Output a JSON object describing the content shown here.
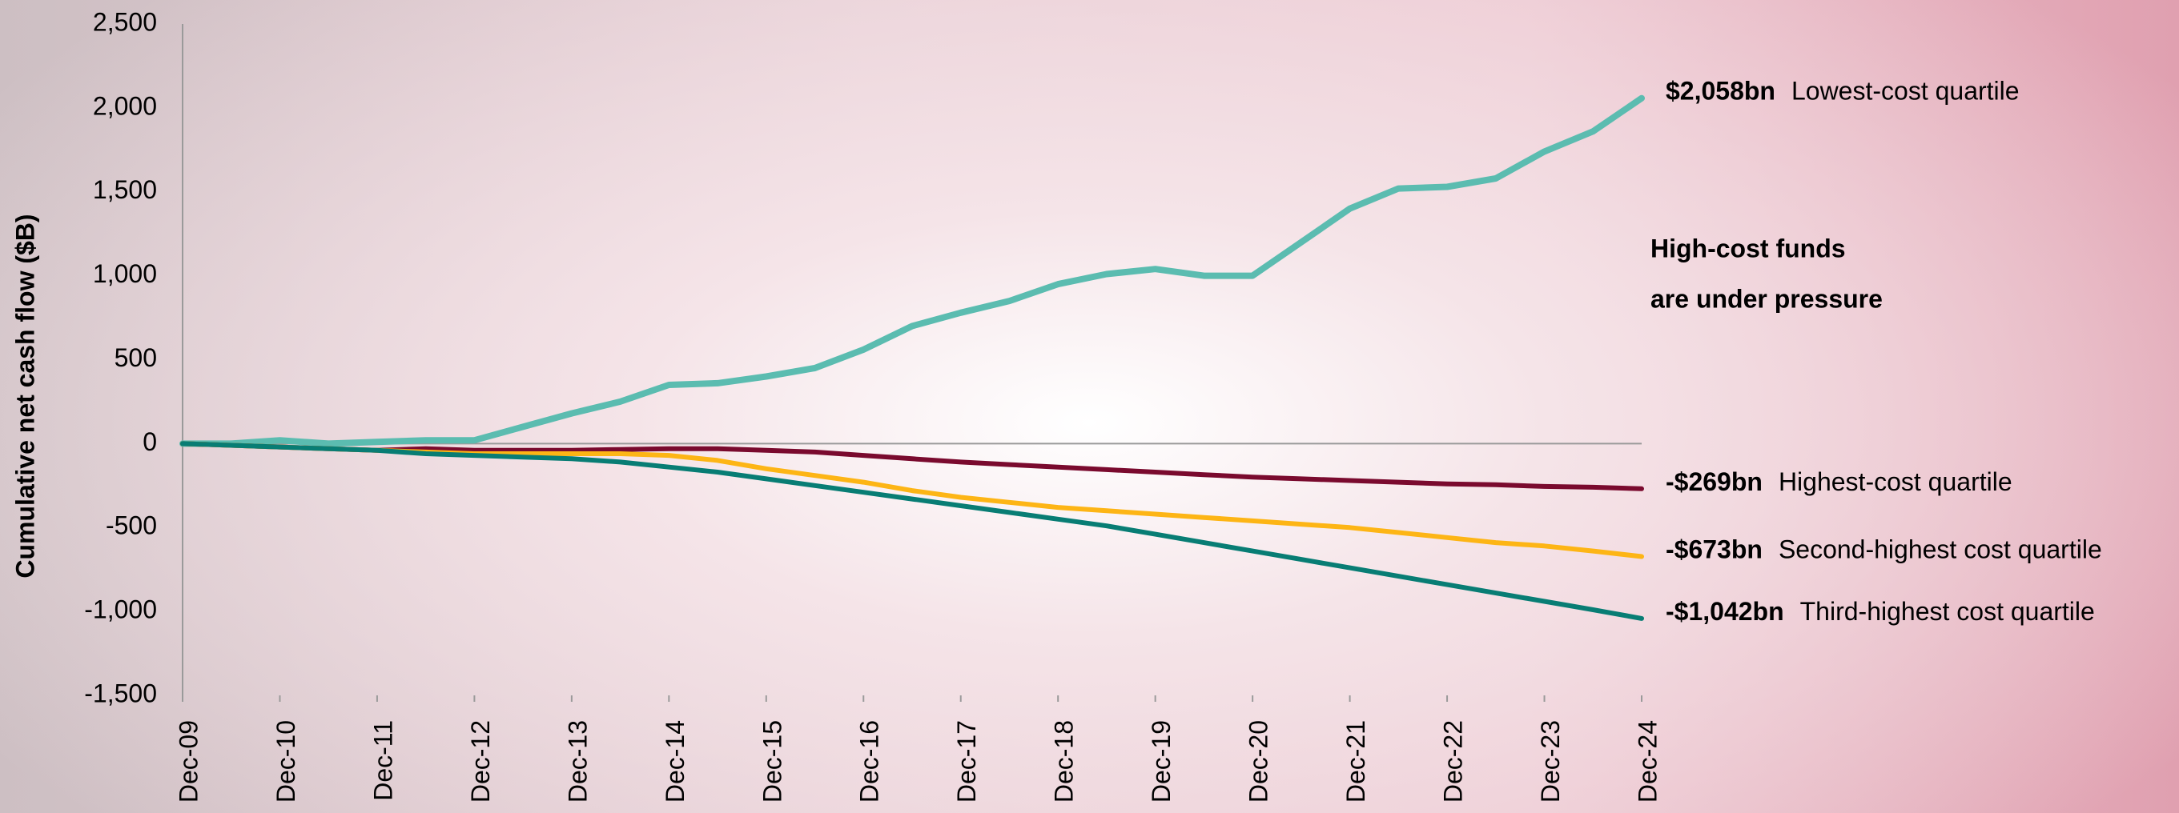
{
  "chart_data": {
    "type": "line",
    "y_axis_label": "Cumulative net cash flow ($B)",
    "annotation": [
      "High-cost funds",
      "are under pressure"
    ],
    "annotation_color": "#e8112d",
    "categories": [
      "Dec-09",
      null,
      "Dec-10",
      null,
      "Dec-11",
      null,
      "Dec-12",
      null,
      "Dec-13",
      null,
      "Dec-14",
      null,
      "Dec-15",
      null,
      "Dec-16",
      null,
      "Dec-17",
      null,
      "Dec-18",
      null,
      "Dec-19",
      null,
      "Dec-20",
      null,
      "Dec-21",
      null,
      "Dec-22",
      null,
      "Dec-23",
      null,
      "Dec-24"
    ],
    "ylim": [
      -1500,
      2500
    ],
    "yticks": [
      {
        "value": 2500,
        "label": "2,500"
      },
      {
        "value": 2000,
        "label": "2,000"
      },
      {
        "value": 1500,
        "label": "1,500"
      },
      {
        "value": 1000,
        "label": "1,000"
      },
      500,
      0,
      -500,
      {
        "value": -1000,
        "label": "-1,000"
      },
      {
        "value": -1500,
        "label": "-1,500"
      }
    ],
    "zero_line": true,
    "series": [
      {
        "name": "Lowest-cost quartile",
        "color": "#5bbcb0",
        "values": [
          0,
          0,
          20,
          0,
          10,
          20,
          20,
          100,
          180,
          250,
          350,
          360,
          400,
          450,
          560,
          700,
          780,
          850,
          950,
          1010,
          1040,
          1000,
          1000,
          1200,
          1400,
          1520,
          1530,
          1580,
          1740,
          1860,
          2058
        ],
        "value_labels": [
          null,
          null,
          null,
          null,
          null,
          null,
          null,
          null,
          null,
          null,
          null,
          null,
          null,
          null,
          null,
          null,
          null,
          null,
          null,
          null,
          null,
          null,
          null,
          null,
          null,
          null,
          null,
          null,
          null,
          null,
          "$2,058bn"
        ]
      },
      {
        "name": "Highest-cost quartile",
        "color": "#7a0a2e",
        "values": [
          0,
          -10,
          -20,
          -30,
          -40,
          -30,
          -40,
          -40,
          -40,
          -35,
          -30,
          -30,
          -40,
          -50,
          -70,
          -90,
          -110,
          -125,
          -140,
          -155,
          -170,
          -185,
          -200,
          -210,
          -220,
          -230,
          -240,
          -245,
          -255,
          -260,
          -269
        ],
        "value_labels": [
          null,
          null,
          null,
          null,
          null,
          null,
          null,
          null,
          null,
          null,
          null,
          null,
          null,
          null,
          null,
          null,
          null,
          null,
          null,
          null,
          null,
          null,
          null,
          null,
          null,
          null,
          null,
          null,
          null,
          null,
          "-$269bn"
        ]
      },
      {
        "name": "Second-highest cost quartile",
        "color": "#fdb515",
        "values": [
          0,
          -10,
          -20,
          -30,
          -40,
          -50,
          -60,
          -60,
          -60,
          -60,
          -70,
          -100,
          -150,
          -190,
          -230,
          -280,
          -320,
          -350,
          -380,
          -400,
          -420,
          -440,
          -460,
          -480,
          -500,
          -530,
          -560,
          -590,
          -610,
          -640,
          -673
        ],
        "value_labels": [
          null,
          null,
          null,
          null,
          null,
          null,
          null,
          null,
          null,
          null,
          null,
          null,
          null,
          null,
          null,
          null,
          null,
          null,
          null,
          null,
          null,
          null,
          null,
          null,
          null,
          null,
          null,
          null,
          null,
          null,
          "-$673bn"
        ]
      },
      {
        "name": "Third-highest cost quartile",
        "color": "#087d74",
        "values": [
          0,
          -10,
          -20,
          -30,
          -40,
          -60,
          -70,
          -80,
          -90,
          -110,
          -140,
          -170,
          -210,
          -250,
          -290,
          -330,
          -370,
          -410,
          -450,
          -490,
          -540,
          -590,
          -640,
          -690,
          -740,
          -790,
          -840,
          -890,
          -940,
          -990,
          -1042
        ],
        "value_labels": [
          null,
          null,
          null,
          null,
          null,
          null,
          null,
          null,
          null,
          null,
          null,
          null,
          null,
          null,
          null,
          null,
          null,
          null,
          null,
          null,
          null,
          null,
          null,
          null,
          null,
          null,
          null,
          null,
          null,
          null,
          "-$1,042bn"
        ]
      }
    ]
  }
}
